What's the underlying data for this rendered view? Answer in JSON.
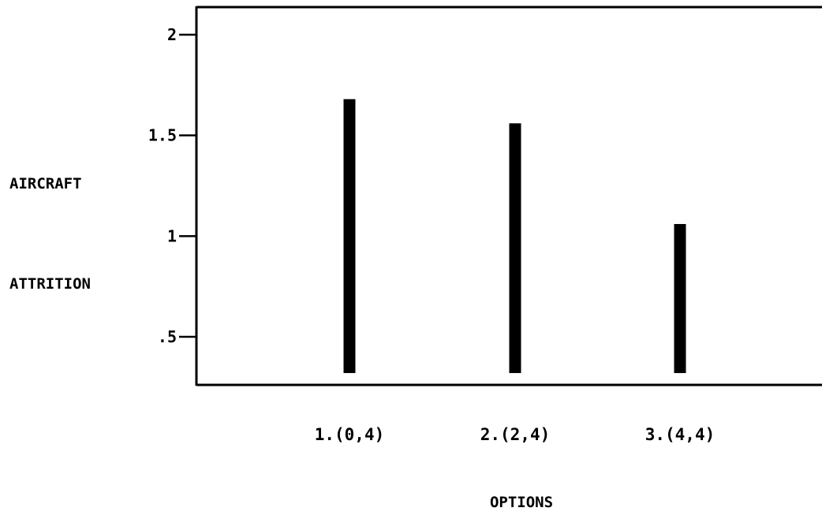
{
  "chart_data": {
    "type": "bar",
    "title": "",
    "ylabel_lines": [
      "AIRCRAFT",
      "ATTRITION"
    ],
    "xlabel": "OPTIONS",
    "categories": [
      "1.(0,4)",
      "2.(2,4)",
      "3.(4,4)"
    ],
    "values": [
      1.68,
      1.56,
      1.06
    ],
    "bar_base": 0.32,
    "ylim": [
      0.27,
      2.1
    ],
    "yticks": [
      0.5,
      1,
      1.5,
      2
    ],
    "ytick_labels": [
      ".5",
      "1",
      "1.5",
      "2"
    ],
    "grid": false,
    "legend": "none",
    "bar_color": "#000000"
  }
}
